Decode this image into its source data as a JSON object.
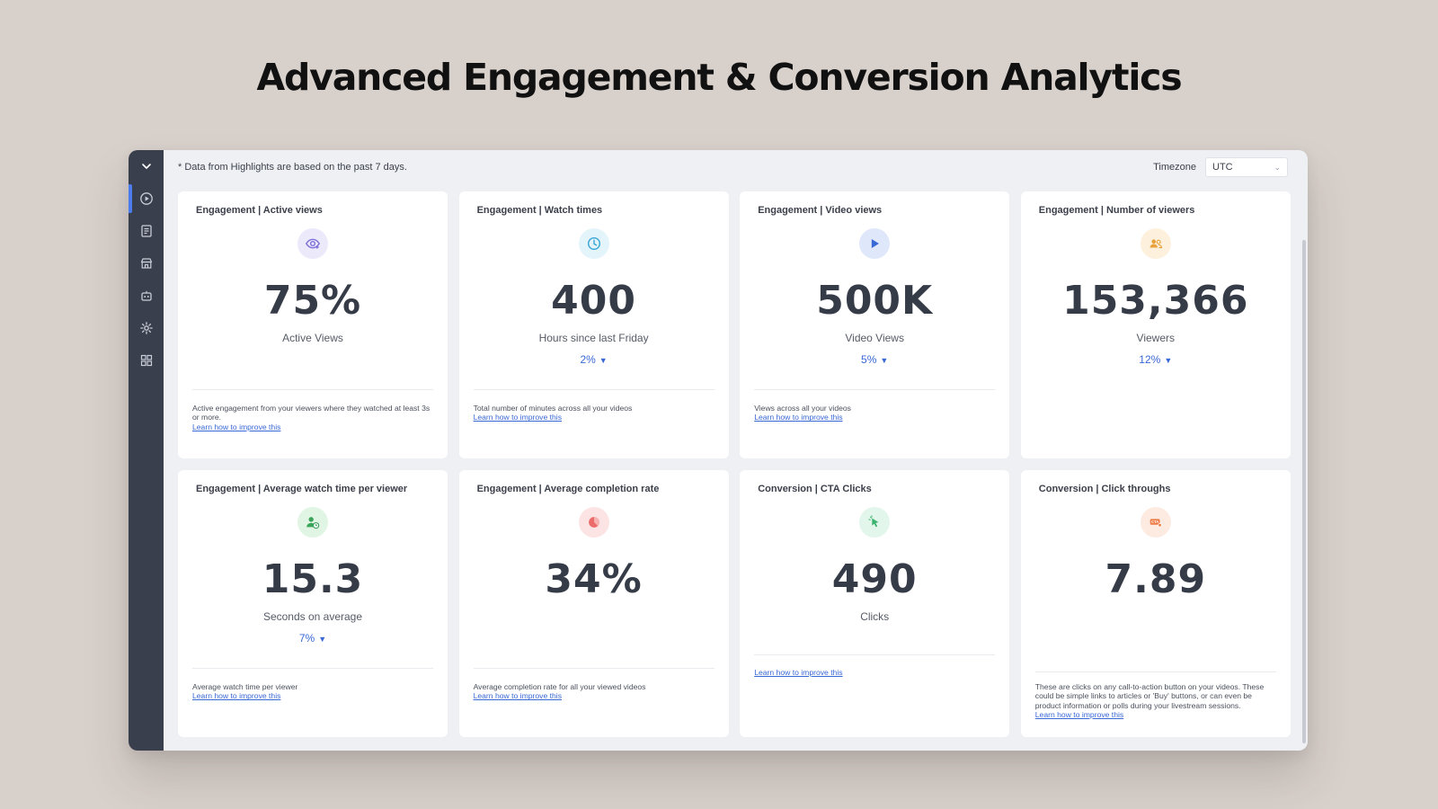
{
  "page": {
    "heading": "Advanced Engagement & Conversion Analytics"
  },
  "sidebar": {
    "items": [
      {
        "icon": "chevron-down-icon"
      },
      {
        "icon": "play-circle-icon",
        "active": true
      },
      {
        "icon": "document-icon"
      },
      {
        "icon": "storefront-icon"
      },
      {
        "icon": "robot-icon"
      },
      {
        "icon": "gear-icon"
      },
      {
        "icon": "grid-icon"
      }
    ]
  },
  "header": {
    "note": "* Data from Highlights are based on the past 7 days.",
    "timezone_label": "Timezone",
    "timezone_value": "UTC"
  },
  "cards": [
    {
      "title": "Engagement | Active views",
      "icon": "eye-icon",
      "value": "75%",
      "label": "Active Views",
      "trend": "",
      "footer": "Active engagement from your viewers where they watched at least 3s or more.",
      "link": "Learn how to improve this"
    },
    {
      "title": "Engagement | Watch times",
      "icon": "clock-icon",
      "value": "400",
      "label": "Hours since last Friday",
      "trend": "2%",
      "footer": "Total number of minutes across all your videos",
      "link": "Learn how to improve this"
    },
    {
      "title": "Engagement | Video views",
      "icon": "play-icon",
      "value": "500K",
      "label": "Video Views",
      "trend": "5%",
      "footer": "Views across all your videos",
      "link": "Learn how to improve this"
    },
    {
      "title": "Engagement | Number of viewers",
      "icon": "users-icon",
      "value": "153,366",
      "label": "Viewers",
      "trend": "12%",
      "footer": "",
      "link": ""
    },
    {
      "title": "Engagement | Average watch time per viewer",
      "icon": "user-clock-icon",
      "value": "15.3",
      "label": "Seconds on average",
      "trend": "7%",
      "footer": "Average watch time per viewer",
      "link": "Learn how to improve this"
    },
    {
      "title": "Engagement | Average completion rate",
      "icon": "pie-chart-icon",
      "value": "34%",
      "label": "",
      "trend": "",
      "footer": "Average completion rate for all your viewed videos",
      "link": "Learn how to improve this"
    },
    {
      "title": "Conversion | CTA Clicks",
      "icon": "cursor-click-icon",
      "value": "490",
      "label": "Clicks",
      "trend": "",
      "footer": "",
      "link": "Learn how to improve this"
    },
    {
      "title": "Conversion | Click throughs",
      "icon": "cta-icon",
      "value": "7.89",
      "label": "",
      "trend": "",
      "footer": "These are clicks on any call-to-action button on your videos. These could be simple links to articles or 'Buy' buttons, or can even be product information or polls during your livestream sessions.",
      "link": "Learn how to improve this"
    }
  ],
  "colors": {
    "background": "#d8d0cb",
    "sidebar": "#3a3f4e",
    "accent": "#3867d6",
    "eye_icon_bg": "#ece9fb",
    "clock_icon_bg": "#e4f4fb",
    "play_icon_bg": "#dfe7fb",
    "users_icon_bg": "#fdf1dd",
    "user_clock_icon_bg": "#e1f5e4",
    "pie_icon_bg": "#fde4e4",
    "cursor_icon_bg": "#e3f6ec",
    "cta_icon_bg": "#fdebe2"
  }
}
